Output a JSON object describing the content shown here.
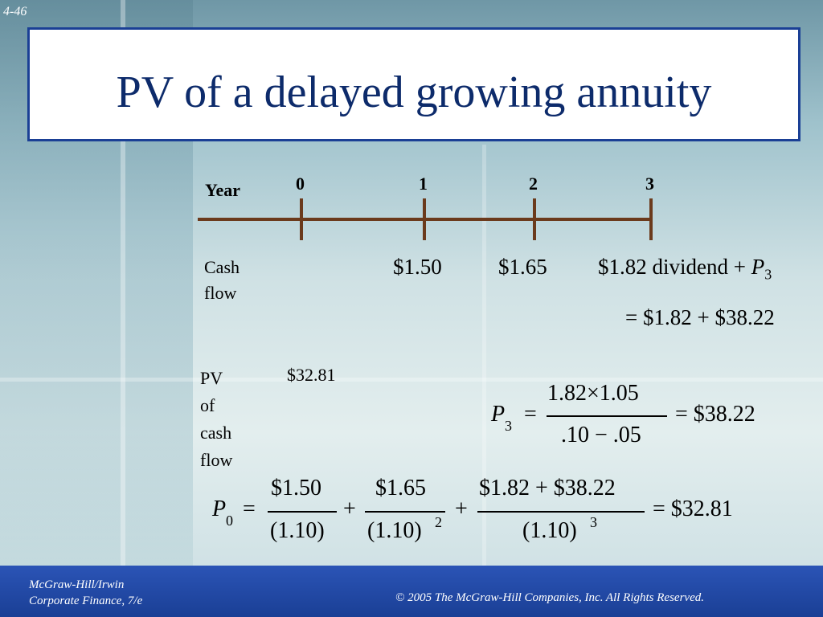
{
  "slide_number": "4-46",
  "title": "PV of a delayed growing annuity",
  "timeline": {
    "year_label": "Year",
    "years": [
      "0",
      "1",
      "2",
      "3"
    ]
  },
  "cash_flow": {
    "label_line1": "Cash",
    "label_line2": "flow",
    "cf1": "$1.50",
    "cf2": "$1.65",
    "cf3": "$1.82 dividend + ",
    "cf3_p": "P",
    "cf3_sub": "3",
    "cf3_total": "= $1.82 + $38.22"
  },
  "pv_block": {
    "label_lines": [
      "PV",
      "of",
      "cash",
      "flow"
    ],
    "value": "$32.81"
  },
  "p3_formula": {
    "lhs": "P",
    "lhs_sub": "3",
    "eq": "=",
    "numerator": "1.82×1.05",
    "denominator": ".10 − .05",
    "result": "= $38.22"
  },
  "p0_formula": {
    "lhs": "P",
    "lhs_sub": "0",
    "eq": "=",
    "t1_num": "$1.50",
    "t1_den": "(1.10)",
    "plus1": "+",
    "t2_num": "$1.65",
    "t2_den": "(1.10)",
    "t2_exp": "2",
    "plus2": "+",
    "t3_num": "$1.82 + $38.22",
    "t3_den": "(1.10)",
    "t3_exp": "3",
    "result": "= $32.81"
  },
  "footer": {
    "publisher": "McGraw-Hill/Irwin",
    "book": "Corporate Finance, 7/e",
    "copyright": "© 2005  The McGraw-Hill Companies, Inc.  All Rights Reserved."
  }
}
